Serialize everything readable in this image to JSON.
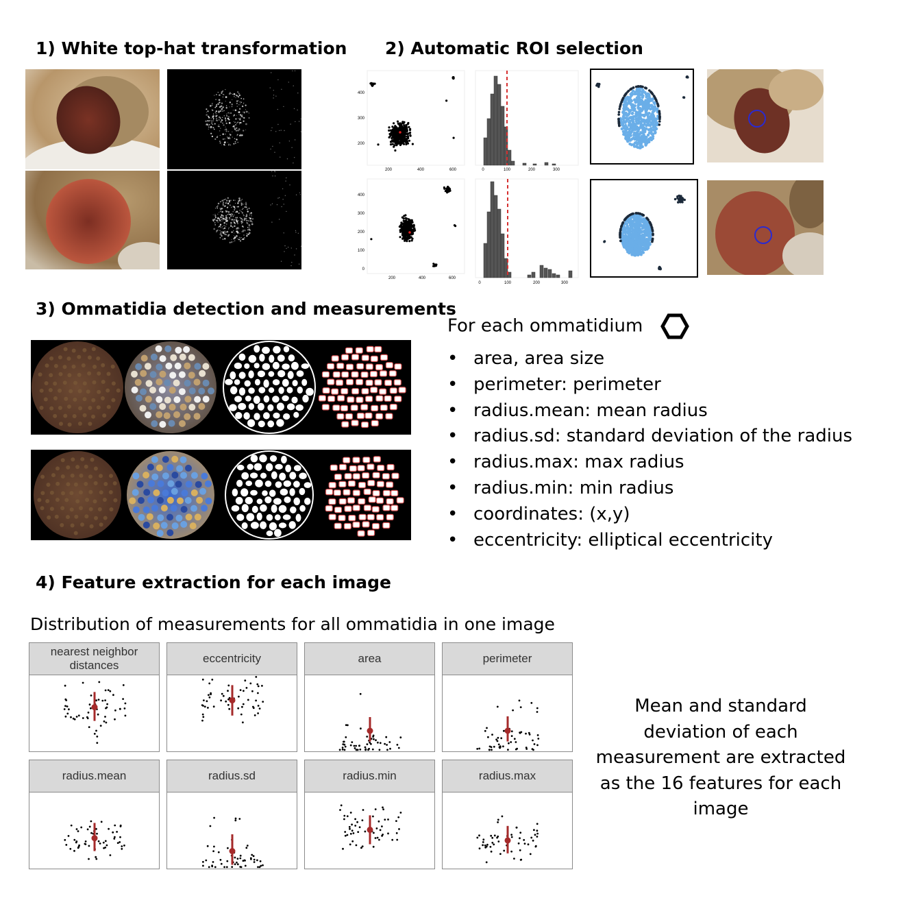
{
  "sections": {
    "s1_title": "1) White top-hat transformation",
    "s2_title": "2) Automatic ROI selection",
    "s3_title": "3) Ommatidia detection and measurements",
    "s4_title": "4) Feature extraction for each image"
  },
  "roi_plots": {
    "scatter_top_yticks": [
      "400",
      "300",
      "200"
    ],
    "scatter_top_xticks": [
      "200",
      "400",
      "600"
    ],
    "scatter_bottom_yticks": [
      "400",
      "300",
      "200",
      "100",
      "0"
    ],
    "scatter_bottom_xticks": [
      "200",
      "400",
      "600"
    ],
    "hist_xticks": [
      "0",
      "100",
      "200",
      "300"
    ],
    "threshold": 100
  },
  "ommatidium": {
    "heading": "For each ommatidium",
    "items": [
      "area, area size",
      "perimeter: perimeter",
      "radius.mean: mean radius",
      "radius.sd: standard deviation of the radius",
      "radius.max: max radius",
      "radius.min: min radius",
      "coordinates: (x,y)",
      "eccentricity: elliptical eccentricity"
    ]
  },
  "distribution_title": "Distribution of measurements for all ommatidia in one image",
  "facets": [
    {
      "label": "nearest neighbor distances",
      "mean": 0.58,
      "sd_low": 0.4,
      "sd_high": 0.78,
      "spread": "wide"
    },
    {
      "label": "eccentricity",
      "mean": 0.67,
      "sd_low": 0.47,
      "sd_high": 0.87,
      "spread": "wide"
    },
    {
      "label": "area",
      "mean": 0.27,
      "sd_low": 0.13,
      "sd_high": 0.45,
      "spread": "low"
    },
    {
      "label": "perimeter",
      "mean": 0.27,
      "sd_low": 0.13,
      "sd_high": 0.46,
      "spread": "low"
    },
    {
      "label": "radius.mean",
      "mean": 0.4,
      "sd_low": 0.23,
      "sd_high": 0.6,
      "spread": "mid"
    },
    {
      "label": "radius.sd",
      "mean": 0.23,
      "sd_low": 0.05,
      "sd_high": 0.45,
      "spread": "low"
    },
    {
      "label": "radius.min",
      "mean": 0.51,
      "sd_low": 0.32,
      "sd_high": 0.7,
      "spread": "mid"
    },
    {
      "label": "radius.max",
      "mean": 0.37,
      "sd_low": 0.2,
      "sd_high": 0.56,
      "spread": "mid"
    }
  ],
  "summary_text": "Mean and standard deviation of each measurement are extracted as the 16 features for each image",
  "colors": {
    "eye_red": "#8a3a2a",
    "roi_blue": "#6aaee8",
    "dark_points": "#1c2a3a",
    "threshold_red": "#d62f2f",
    "mean_red": "#a52a2a"
  }
}
